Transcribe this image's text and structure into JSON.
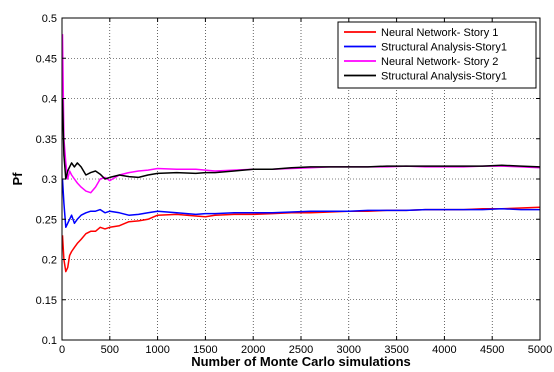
{
  "chart_data": {
    "type": "line",
    "title": "",
    "xlabel": "Number of Monte Carlo simulations",
    "ylabel": "Pf",
    "xlim": [
      0,
      5000
    ],
    "ylim": [
      0.1,
      0.5
    ],
    "xticks": [
      0,
      500,
      1000,
      1500,
      2000,
      2500,
      3000,
      3500,
      4000,
      4500,
      5000
    ],
    "yticks": [
      0.1,
      0.15,
      0.2,
      0.25,
      0.3,
      0.35,
      0.4,
      0.45,
      0.5
    ],
    "grid": true,
    "legend_position": "top-right",
    "series": [
      {
        "name": "Neural Network- Story 1",
        "color": "#ff0000",
        "x": [
          5,
          20,
          40,
          60,
          80,
          100,
          130,
          160,
          200,
          250,
          300,
          350,
          400,
          450,
          500,
          600,
          700,
          800,
          900,
          1000,
          1200,
          1400,
          1500,
          1600,
          1800,
          2000,
          2200,
          2400,
          2600,
          2800,
          3000,
          3200,
          3400,
          3600,
          3800,
          4000,
          4200,
          4400,
          4600,
          4800,
          5000
        ],
        "y": [
          0.23,
          0.2,
          0.185,
          0.19,
          0.205,
          0.21,
          0.215,
          0.22,
          0.225,
          0.232,
          0.235,
          0.235,
          0.24,
          0.238,
          0.24,
          0.242,
          0.247,
          0.248,
          0.25,
          0.255,
          0.256,
          0.254,
          0.253,
          0.255,
          0.256,
          0.256,
          0.257,
          0.258,
          0.258,
          0.259,
          0.26,
          0.26,
          0.261,
          0.261,
          0.262,
          0.262,
          0.262,
          0.263,
          0.263,
          0.264,
          0.265
        ]
      },
      {
        "name": "Structural Analysis-Story1",
        "color": "#0000ff",
        "x": [
          5,
          20,
          40,
          60,
          80,
          100,
          130,
          160,
          200,
          250,
          300,
          350,
          400,
          450,
          500,
          600,
          700,
          800,
          900,
          1000,
          1200,
          1400,
          1500,
          1600,
          1800,
          2000,
          2200,
          2400,
          2600,
          2800,
          3000,
          3200,
          3400,
          3600,
          3800,
          4000,
          4200,
          4400,
          4600,
          4800,
          5000
        ],
        "y": [
          0.3,
          0.27,
          0.24,
          0.245,
          0.25,
          0.255,
          0.245,
          0.25,
          0.255,
          0.258,
          0.26,
          0.26,
          0.262,
          0.258,
          0.26,
          0.258,
          0.255,
          0.256,
          0.258,
          0.26,
          0.258,
          0.256,
          0.257,
          0.257,
          0.258,
          0.258,
          0.258,
          0.259,
          0.26,
          0.26,
          0.26,
          0.261,
          0.261,
          0.261,
          0.262,
          0.262,
          0.262,
          0.262,
          0.263,
          0.262,
          0.262
        ]
      },
      {
        "name": "Neural Network- Story 2",
        "color": "#ff00ff",
        "x": [
          5,
          20,
          40,
          60,
          80,
          100,
          130,
          160,
          200,
          250,
          300,
          350,
          400,
          450,
          500,
          600,
          700,
          800,
          900,
          1000,
          1200,
          1400,
          1500,
          1600,
          1800,
          2000,
          2200,
          2400,
          2600,
          2800,
          3000,
          3200,
          3400,
          3600,
          3800,
          4000,
          4200,
          4400,
          4600,
          4800,
          5000
        ],
        "y": [
          0.48,
          0.35,
          0.32,
          0.3,
          0.31,
          0.305,
          0.3,
          0.295,
          0.29,
          0.285,
          0.283,
          0.29,
          0.3,
          0.302,
          0.298,
          0.305,
          0.308,
          0.31,
          0.311,
          0.313,
          0.312,
          0.312,
          0.311,
          0.31,
          0.311,
          0.312,
          0.312,
          0.313,
          0.314,
          0.315,
          0.315,
          0.315,
          0.315,
          0.316,
          0.315,
          0.315,
          0.315,
          0.316,
          0.316,
          0.315,
          0.314
        ]
      },
      {
        "name": "Structural Analysis-Story1",
        "color": "#000000",
        "x": [
          5,
          20,
          40,
          60,
          80,
          100,
          130,
          160,
          200,
          250,
          300,
          350,
          400,
          450,
          500,
          600,
          700,
          800,
          900,
          1000,
          1200,
          1400,
          1500,
          1600,
          1800,
          2000,
          2200,
          2400,
          2600,
          2800,
          3000,
          3200,
          3400,
          3600,
          3800,
          4000,
          4200,
          4400,
          4600,
          4800,
          5000
        ],
        "y": [
          0.4,
          0.33,
          0.3,
          0.31,
          0.315,
          0.32,
          0.315,
          0.32,
          0.315,
          0.305,
          0.308,
          0.31,
          0.306,
          0.3,
          0.302,
          0.305,
          0.303,
          0.302,
          0.305,
          0.307,
          0.308,
          0.307,
          0.308,
          0.308,
          0.31,
          0.312,
          0.312,
          0.314,
          0.315,
          0.315,
          0.315,
          0.315,
          0.316,
          0.316,
          0.316,
          0.316,
          0.316,
          0.316,
          0.317,
          0.316,
          0.315
        ]
      }
    ]
  }
}
